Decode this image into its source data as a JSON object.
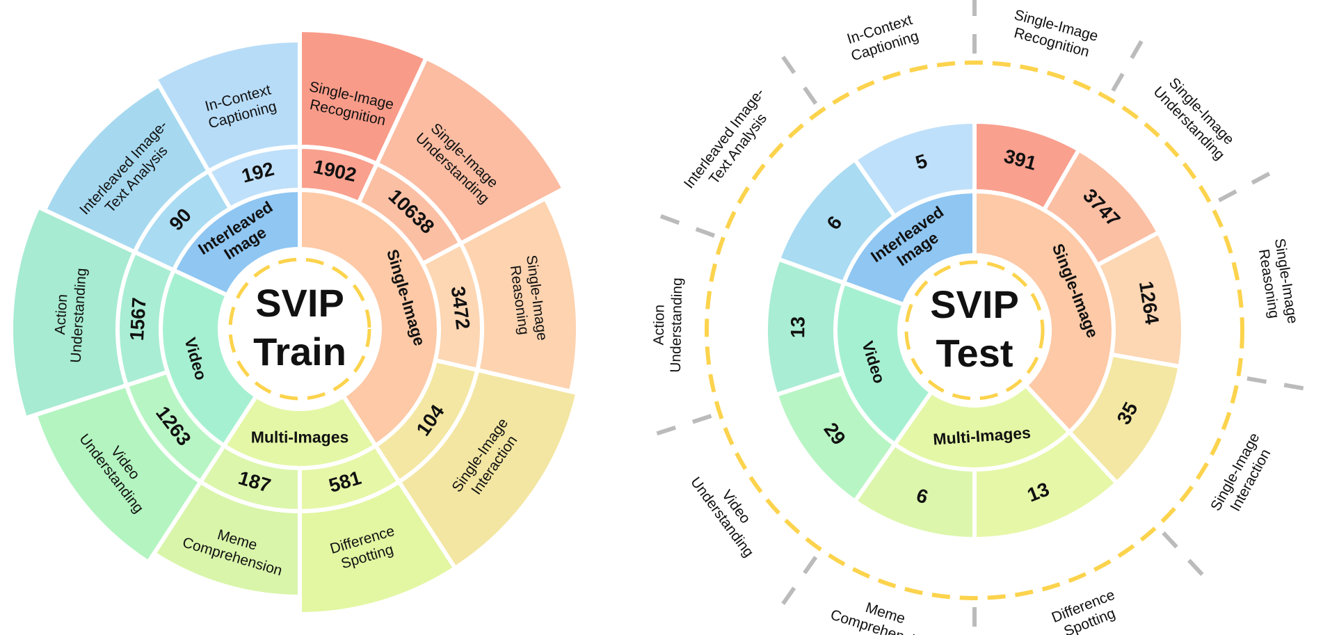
{
  "train": {
    "center": [
      "SVIP",
      "Train"
    ],
    "groups": [
      {
        "label": [
          "Single-Image"
        ],
        "segments": [
          {
            "label": [
              "Single-Image",
              "Recognition"
            ],
            "count": 1902
          },
          {
            "label": [
              "Single-Image",
              "Understanding"
            ],
            "count": 10638
          },
          {
            "label": [
              "Single-Image",
              "Reasoning"
            ],
            "count": 3472
          },
          {
            "label": [
              "Single-Image",
              "Interaction"
            ],
            "count": 104
          }
        ]
      },
      {
        "label": [
          "Multi-Images"
        ],
        "segments": [
          {
            "label": [
              "Difference",
              "Spotting"
            ],
            "count": 581
          },
          {
            "label": [
              "Meme",
              "Comprehension"
            ],
            "count": 187
          }
        ]
      },
      {
        "label": [
          "Video"
        ],
        "segments": [
          {
            "label": [
              "Video",
              "Understanding"
            ],
            "count": 1263
          },
          {
            "label": [
              "Action",
              "Understanding"
            ],
            "count": 1567
          }
        ]
      },
      {
        "label": [
          "Interleaved",
          "Image"
        ],
        "segments": [
          {
            "label": [
              "Interleaved Image-",
              "Text Analysis"
            ],
            "count": 90
          },
          {
            "label": [
              "In-Context",
              "Captioning"
            ],
            "count": 192
          }
        ]
      }
    ]
  },
  "test": {
    "center": [
      "SVIP",
      "Test"
    ],
    "groups": [
      {
        "label": [
          "Single-Image"
        ],
        "segments": [
          {
            "label": [
              "Single-Image",
              "Recognition"
            ],
            "count": 391
          },
          {
            "label": [
              "Single-Image",
              "Understanding"
            ],
            "count": 3747
          },
          {
            "label": [
              "Single-Image",
              "Reasoning"
            ],
            "count": 1264
          },
          {
            "label": [
              "Single-Image",
              "Interaction"
            ],
            "count": 35
          }
        ]
      },
      {
        "label": [
          "Multi-Images"
        ],
        "segments": [
          {
            "label": [
              "Difference",
              "Spotting"
            ],
            "count": 13
          },
          {
            "label": [
              "Meme",
              "Comprehension"
            ],
            "count": 6
          }
        ]
      },
      {
        "label": [
          "Video"
        ],
        "segments": [
          {
            "label": [
              "Video",
              "Understanding"
            ],
            "count": 29
          },
          {
            "label": [
              "Action",
              "Understanding"
            ],
            "count": 13
          }
        ]
      },
      {
        "label": [
          "Interleaved",
          "Image"
        ],
        "segments": [
          {
            "label": [
              "Interleaved Image-",
              "Text Analysis"
            ],
            "count": 6
          },
          {
            "label": [
              "In-Context",
              "Captioning"
            ],
            "count": 5
          }
        ]
      }
    ]
  }
}
